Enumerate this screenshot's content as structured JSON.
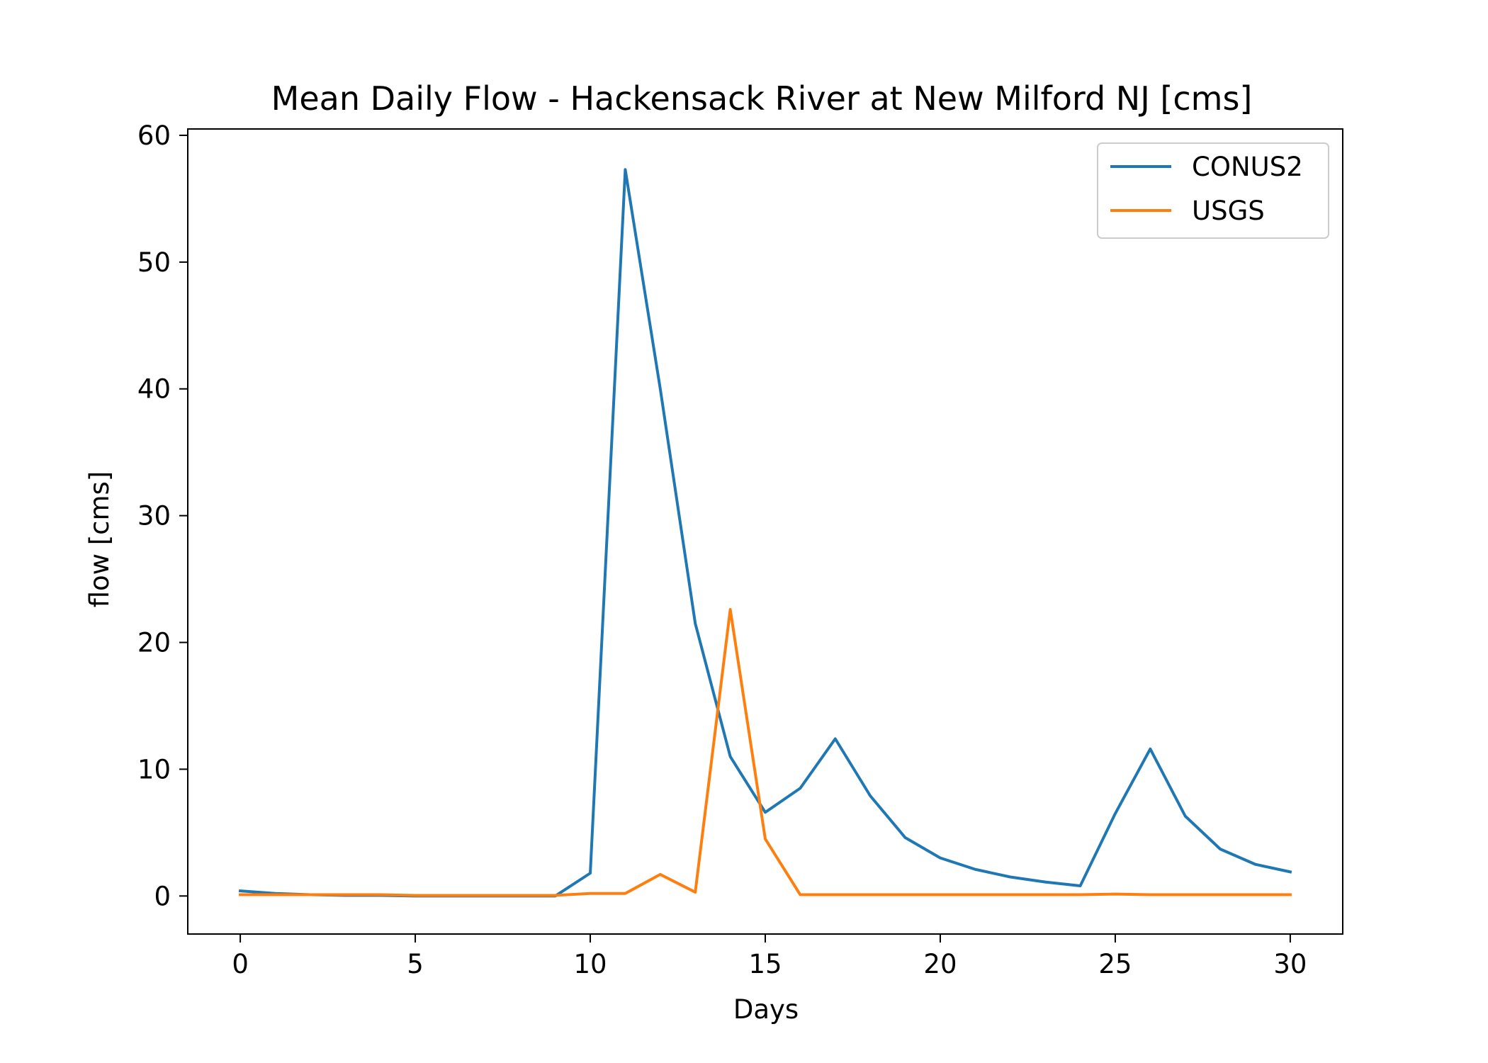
{
  "chart_data": {
    "type": "line",
    "title": "Mean Daily Flow - Hackensack River at New Milford NJ [cms]",
    "xlabel": "Days",
    "ylabel": "flow [cms]",
    "xlim": [
      -1.5,
      31.5
    ],
    "ylim": [
      -3,
      60.5
    ],
    "xticks": [
      0,
      5,
      10,
      15,
      20,
      25,
      30
    ],
    "yticks": [
      0,
      10,
      20,
      30,
      40,
      50,
      60
    ],
    "grid": false,
    "legend_position": "top-right",
    "x": [
      0,
      1,
      2,
      3,
      4,
      5,
      6,
      7,
      8,
      9,
      10,
      11,
      12,
      13,
      14,
      15,
      16,
      17,
      18,
      19,
      20,
      21,
      22,
      23,
      24,
      25,
      26,
      27,
      28,
      29,
      30
    ],
    "series": [
      {
        "name": "CONUS2",
        "color": "#1f77b4",
        "values": [
          0.4,
          0.2,
          0.1,
          0.05,
          0.05,
          0.0,
          0.0,
          0.0,
          0.0,
          0.0,
          1.8,
          57.3,
          40.0,
          21.5,
          11.0,
          6.6,
          8.5,
          12.4,
          7.9,
          4.6,
          3.0,
          2.1,
          1.5,
          1.1,
          0.8,
          6.5,
          11.6,
          6.3,
          3.7,
          2.5,
          1.9
        ]
      },
      {
        "name": "USGS",
        "color": "#ff7f0e",
        "values": [
          0.1,
          0.1,
          0.1,
          0.1,
          0.1,
          0.05,
          0.05,
          0.05,
          0.05,
          0.05,
          0.2,
          0.2,
          1.7,
          0.3,
          22.6,
          4.5,
          0.1,
          0.1,
          0.1,
          0.1,
          0.1,
          0.1,
          0.1,
          0.1,
          0.1,
          0.15,
          0.1,
          0.1,
          0.1,
          0.1,
          0.1
        ]
      }
    ]
  }
}
